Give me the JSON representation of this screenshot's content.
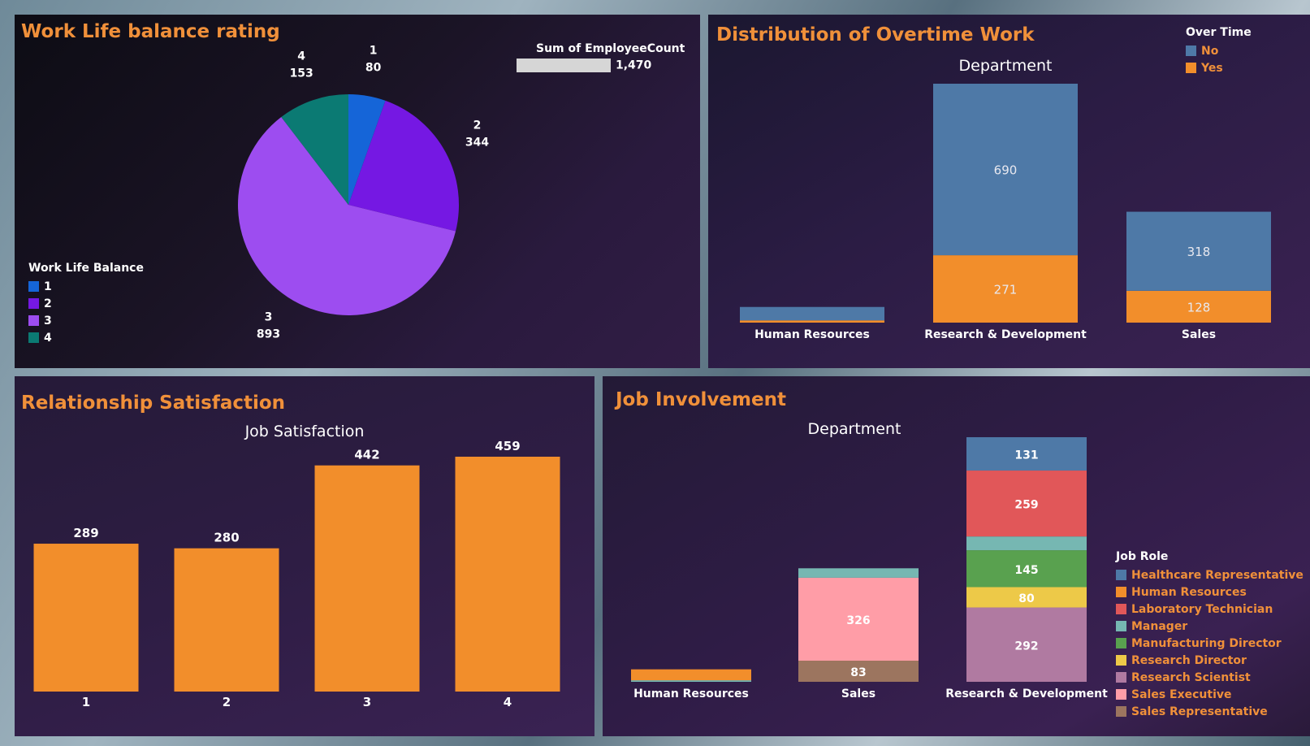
{
  "panels": {
    "work_life": {
      "title": "Work Life balance rating"
    },
    "overtime": {
      "title": "Distribution of Overtime Work",
      "header": "Department"
    },
    "relationship": {
      "title": "Relationship Satisfaction",
      "header": "Job Satisfaction"
    },
    "job_involvement": {
      "title": "Job Involvement",
      "header": "Department"
    }
  },
  "sum_legend": {
    "title": "Sum of EmployeeCount",
    "value": "1,470"
  },
  "legends": {
    "work_life": {
      "title": "Work Life Balance",
      "items": [
        {
          "label": "1",
          "color": "#1565d8"
        },
        {
          "label": "2",
          "color": "#7518e3"
        },
        {
          "label": "3",
          "color": "#9d4df0"
        },
        {
          "label": "4",
          "color": "#0b7a73"
        }
      ]
    },
    "overtime": {
      "title": "Over Time",
      "items": [
        {
          "label": "No",
          "color": "#4e79a7"
        },
        {
          "label": "Yes",
          "color": "#f28e2b"
        }
      ]
    },
    "job_role": {
      "title": "Job Role",
      "items": [
        {
          "label": "Healthcare Representative",
          "color": "#4e79a7"
        },
        {
          "label": "Human Resources",
          "color": "#f28e2b"
        },
        {
          "label": "Laboratory Technician",
          "color": "#e15759"
        },
        {
          "label": "Manager",
          "color": "#76b7b2"
        },
        {
          "label": "Manufacturing Director",
          "color": "#59a14f"
        },
        {
          "label": "Research Director",
          "color": "#edc948"
        },
        {
          "label": "Research Scientist",
          "color": "#b07aa1"
        },
        {
          "label": "Sales Executive",
          "color": "#ff9da7"
        },
        {
          "label": "Sales Representative",
          "color": "#9c755f"
        }
      ]
    }
  },
  "chart_data": [
    {
      "id": "work_life_pie",
      "type": "pie",
      "title": "Work Life balance rating",
      "categories": [
        "1",
        "2",
        "3",
        "4"
      ],
      "values": [
        80,
        344,
        893,
        153
      ],
      "colors": [
        "#1565d8",
        "#7518e3",
        "#9d4df0",
        "#0b7a73"
      ],
      "legend": "Work Life Balance"
    },
    {
      "id": "overtime_stacked",
      "type": "bar",
      "stacked": true,
      "title": "Distribution of Overtime Work",
      "header": "Department",
      "categories": [
        "Human Resources",
        "Research & Development",
        "Sales"
      ],
      "series": [
        {
          "name": "Yes",
          "color": "#f28e2b",
          "values": [
            9,
            271,
            128
          ],
          "labels": [
            "",
            "271",
            "128"
          ]
        },
        {
          "name": "No",
          "color": "#4e79a7",
          "values": [
            54,
            690,
            318
          ],
          "labels": [
            "",
            "690",
            "318"
          ]
        }
      ],
      "legend": "Over Time"
    },
    {
      "id": "relationship_bars",
      "type": "bar",
      "title": "Relationship Satisfaction",
      "header": "Job Satisfaction",
      "categories": [
        "1",
        "2",
        "3",
        "4"
      ],
      "values": [
        289,
        280,
        442,
        459
      ],
      "color": "#f28e2b"
    },
    {
      "id": "job_involvement_stacked",
      "type": "bar",
      "stacked": true,
      "title": "Job Involvement",
      "header": "Department",
      "categories": [
        "Human Resources",
        "Sales",
        "Research & Development"
      ],
      "series": [
        {
          "name": "Sales Representative",
          "color": "#9c755f",
          "values": [
            0,
            83,
            0
          ],
          "labels": [
            "",
            "83",
            ""
          ]
        },
        {
          "name": "Sales Executive",
          "color": "#ff9da7",
          "values": [
            0,
            326,
            0
          ],
          "labels": [
            "",
            "326",
            ""
          ]
        },
        {
          "name": "Research Scientist",
          "color": "#b07aa1",
          "values": [
            0,
            0,
            292
          ],
          "labels": [
            "",
            "",
            "292"
          ]
        },
        {
          "name": "Research Director",
          "color": "#edc948",
          "values": [
            0,
            0,
            80
          ],
          "labels": [
            "",
            "",
            "80"
          ]
        },
        {
          "name": "Manufacturing Director",
          "color": "#59a14f",
          "values": [
            0,
            0,
            145
          ],
          "labels": [
            "",
            "",
            "145"
          ]
        },
        {
          "name": "Manager",
          "color": "#76b7b2",
          "values": [
            6,
            37,
            54
          ],
          "labels": [
            "",
            "",
            ""
          ]
        },
        {
          "name": "Laboratory Technician",
          "color": "#e15759",
          "values": [
            0,
            0,
            259
          ],
          "labels": [
            "",
            "",
            "259"
          ]
        },
        {
          "name": "Human Resources",
          "color": "#f28e2b",
          "values": [
            43,
            0,
            0
          ],
          "labels": [
            "",
            "",
            ""
          ]
        },
        {
          "name": "Healthcare Representative",
          "color": "#4e79a7",
          "values": [
            0,
            0,
            131
          ],
          "labels": [
            "",
            "",
            "131"
          ]
        }
      ],
      "legend": "Job Role"
    }
  ]
}
